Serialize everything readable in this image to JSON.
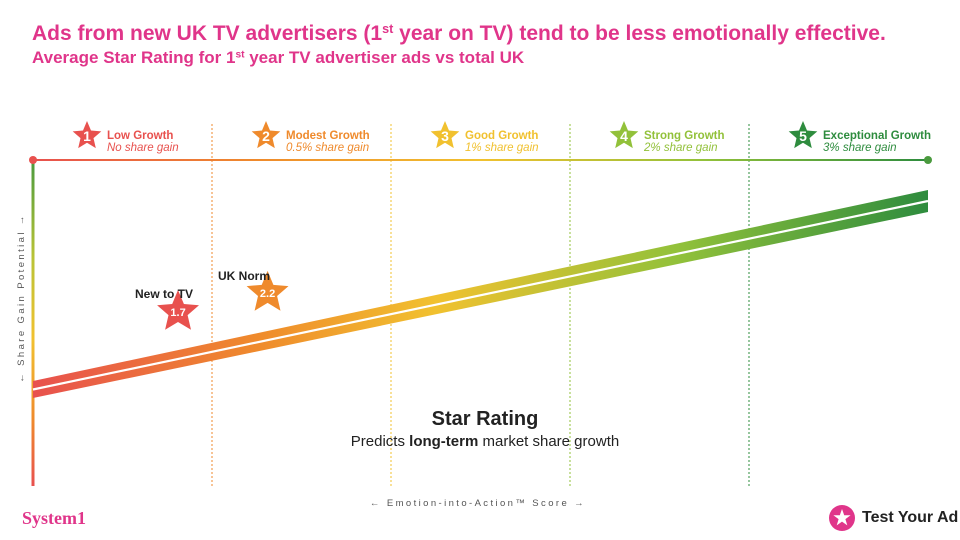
{
  "title": {
    "pre": "Ads from new UK TV advertisers (1",
    "sup": "st",
    "post": " year on TV) tend to be less emotionally effective."
  },
  "subtitle": {
    "pre": "Average Star Rating for 1",
    "sup": "st",
    "post": " year TV advertiser ads vs total UK"
  },
  "chart_data": {
    "type": "scatter",
    "title": "Star Rating",
    "subtitle_pre": "Predicts ",
    "subtitle_bold": "long-term",
    "subtitle_post": " market share growth",
    "xlabel": "← Emotion-into-Action™ Score →",
    "ylabel": "← Share Gain Potential →",
    "xlim": [
      0.75,
      5.75
    ],
    "tiers": [
      {
        "star": "1",
        "name": "Low Growth",
        "gain": "No share gain",
        "color": "#e8514e"
      },
      {
        "star": "2",
        "name": "Modest Growth",
        "gain": "0.5% share gain",
        "color": "#ef8a2c"
      },
      {
        "star": "3",
        "name": "Good Growth",
        "gain": "1% share gain",
        "color": "#f1c12f"
      },
      {
        "star": "4",
        "name": "Strong Growth",
        "gain": "2% share gain",
        "color": "#92c13a"
      },
      {
        "star": "5",
        "name": "Exceptional Growth",
        "gain": "3% share gain",
        "color": "#2e8c3e"
      }
    ],
    "points": [
      {
        "label": "New to TV",
        "value": 1.7,
        "display": "1.7",
        "color": "#e8514e"
      },
      {
        "label": "UK Norm",
        "value": 2.2,
        "display": "2.2",
        "color": "#ef8a2c"
      }
    ]
  },
  "colors": {
    "brand": "#e0358a"
  },
  "logos": {
    "left": "System1",
    "right": "Test Your Ad"
  }
}
